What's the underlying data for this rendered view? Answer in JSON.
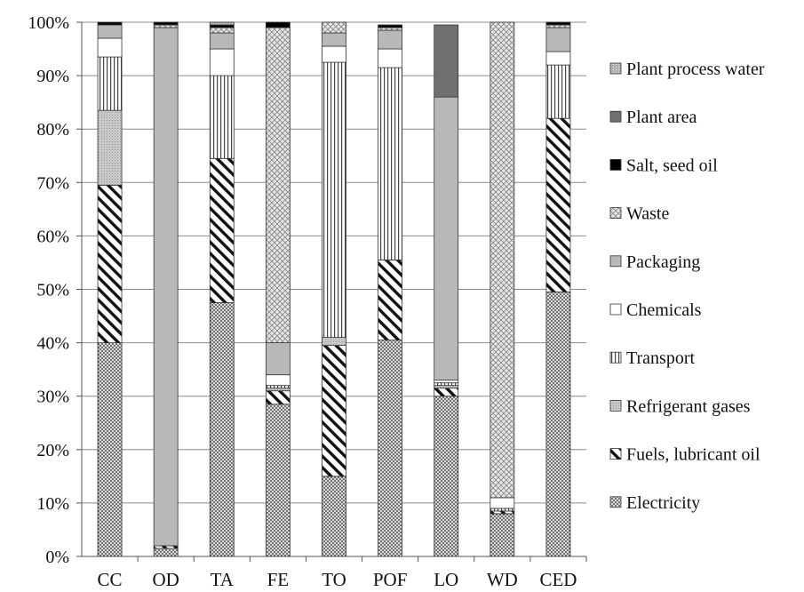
{
  "chart_data": {
    "type": "bar",
    "stacked": true,
    "percent": true,
    "categories": [
      "CC",
      "OD",
      "TA",
      "FE",
      "TO",
      "POF",
      "LO",
      "WD",
      "CED"
    ],
    "ylim": [
      0,
      100
    ],
    "yticks": [
      "0%",
      "10%",
      "20%",
      "30%",
      "40%",
      "50%",
      "60%",
      "70%",
      "80%",
      "90%",
      "100%"
    ],
    "grid": true,
    "legend_position": "right",
    "series": [
      {
        "name": "Electricity",
        "values": [
          40,
          1.5,
          47.5,
          28.5,
          15,
          40.5,
          30,
          8,
          49.5
        ]
      },
      {
        "name": "Fuels, lubricant oil",
        "values": [
          29.5,
          0.5,
          27,
          2.5,
          24.5,
          15,
          1.5,
          0.5,
          32.5
        ]
      },
      {
        "name": "Refrigerant gases",
        "values": [
          14,
          0,
          0,
          0.5,
          1.5,
          0,
          0.5,
          0,
          0
        ]
      },
      {
        "name": "Transport",
        "values": [
          10,
          0,
          15.5,
          0.5,
          51.5,
          36,
          0.5,
          0.5,
          10
        ]
      },
      {
        "name": "Chemicals",
        "values": [
          3.5,
          0,
          5,
          2,
          3,
          3.5,
          0.5,
          2,
          2.5
        ]
      },
      {
        "name": "Packaging",
        "values": [
          2.5,
          97,
          3,
          6,
          2.5,
          3.5,
          53,
          0,
          4.5
        ]
      },
      {
        "name": "Waste",
        "values": [
          0,
          0.5,
          1,
          59,
          2,
          0.5,
          0,
          89,
          0.5
        ]
      },
      {
        "name": "Salt, seed oil",
        "values": [
          0.5,
          0.5,
          0.5,
          1,
          0,
          0.5,
          0,
          0,
          0.5
        ]
      },
      {
        "name": "Plant area",
        "values": [
          0,
          0,
          0,
          0,
          0,
          0,
          13.5,
          0,
          0
        ]
      },
      {
        "name": "Plant process water",
        "values": [
          0,
          0,
          0.5,
          0,
          0,
          0,
          0,
          0,
          0
        ]
      }
    ],
    "legend_order": [
      "Plant process water",
      "Plant area",
      "Salt, seed oil",
      "Waste",
      "Packaging",
      "Chemicals",
      "Transport",
      "Refrigerant gases",
      "Fuels, lubricant oil",
      "Electricity"
    ]
  },
  "styles": {
    "Electricity": {
      "pattern": "dots",
      "bg": "#d9d9d9",
      "fg": "#2a2a2a"
    },
    "Fuels, lubricant oil": {
      "pattern": "diag-wide",
      "bg": "#ffffff",
      "fg": "#111111"
    },
    "Refrigerant gases": {
      "pattern": "fine-dots",
      "bg": "#c8c8c8",
      "fg": "#9a9a9a"
    },
    "Transport": {
      "pattern": "vlines",
      "bg": "#ffffff",
      "fg": "#444444"
    },
    "Chemicals": {
      "pattern": "solid",
      "bg": "#ffffff",
      "fg": "#ffffff"
    },
    "Packaging": {
      "pattern": "solid",
      "bg": "#b8b8b8",
      "fg": "#b8b8b8"
    },
    "Waste": {
      "pattern": "crosshatch",
      "bg": "#e6e6e6",
      "fg": "#8a8a8a"
    },
    "Salt, seed oil": {
      "pattern": "solid",
      "bg": "#000000",
      "fg": "#000000"
    },
    "Plant area": {
      "pattern": "solid",
      "bg": "#707070",
      "fg": "#707070"
    },
    "Plant process water": {
      "pattern": "fine-dots",
      "bg": "#b0b0b0",
      "fg": "#e8e8e8"
    }
  }
}
